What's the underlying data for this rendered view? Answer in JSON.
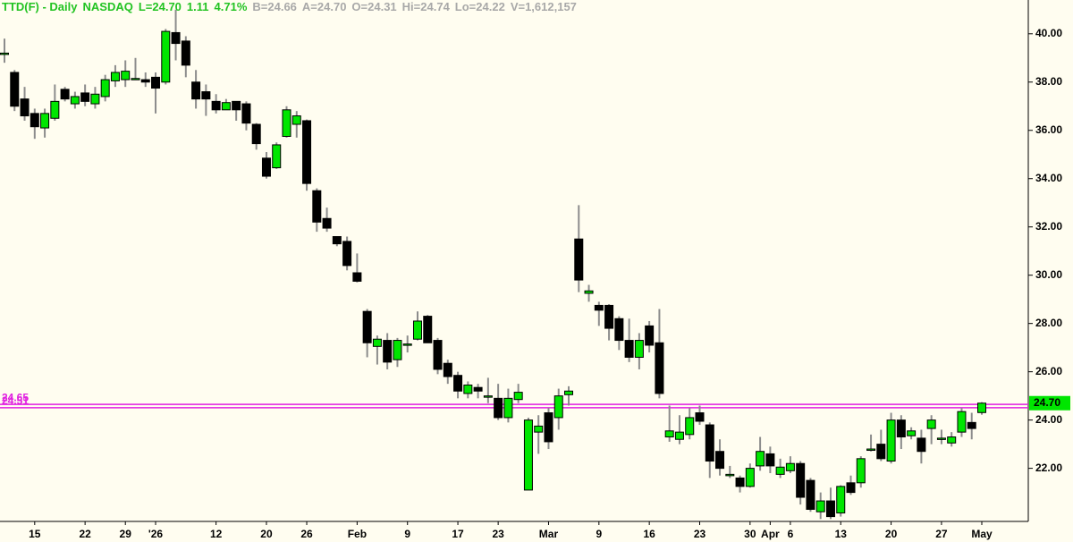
{
  "chart_data": {
    "type": "candlestick",
    "title": [
      "TTD(F) - Daily",
      "NASDAQ",
      "L=24.70",
      "1.11",
      "4.71%"
    ],
    "subtitle": [
      "B=24.66",
      "A=24.70",
      "O=24.31",
      "Hi=24.74",
      "Lo=24.22",
      "V=1,612,157"
    ],
    "categories": [
      null,
      null,
      null,
      "15",
      null,
      null,
      null,
      null,
      "22",
      null,
      null,
      null,
      "29",
      null,
      null,
      "'26",
      null,
      null,
      null,
      null,
      null,
      "12",
      null,
      null,
      null,
      null,
      "20",
      null,
      null,
      null,
      "26",
      null,
      null,
      null,
      null,
      "Feb",
      null,
      null,
      null,
      null,
      "9",
      null,
      null,
      null,
      null,
      "17",
      null,
      null,
      null,
      "23",
      null,
      null,
      null,
      null,
      "Mar",
      null,
      null,
      null,
      null,
      "9",
      null,
      null,
      null,
      null,
      "16",
      null,
      null,
      null,
      null,
      "23",
      null,
      null,
      null,
      null,
      "30",
      null,
      "Apr",
      null,
      "6",
      null,
      null,
      null,
      null,
      "13",
      null,
      null,
      null,
      null,
      "20",
      null,
      null,
      null,
      null,
      "27",
      null,
      null,
      null,
      "May"
    ],
    "open": [
      39.2,
      38.4,
      37.3,
      36.7,
      36.1,
      36.5,
      37.7,
      37.1,
      37.55,
      37.1,
      37.4,
      38.05,
      38.1,
      38.15,
      38.1,
      38.2,
      38.0,
      40.05,
      39.7,
      38.0,
      37.6,
      37.2,
      36.85,
      37.2,
      37.1,
      36.25,
      34.85,
      34.45,
      35.75,
      36.25,
      36.4,
      33.5,
      32.35,
      31.6,
      31.4,
      30.1,
      28.5,
      27.05,
      27.3,
      26.5,
      27.15,
      27.35,
      28.3,
      27.3,
      26.35,
      25.85,
      25.1,
      25.35,
      25.0,
      24.9,
      24.1,
      24.85,
      21.1,
      23.5,
      24.3,
      24.1,
      25.05,
      31.5,
      29.25,
      28.75,
      28.75,
      28.2,
      27.3,
      26.6,
      27.9,
      27.2,
      23.3,
      23.2,
      23.4,
      24.3,
      23.8,
      22.7,
      21.75,
      21.6,
      21.25,
      22.1,
      22.6,
      21.75,
      21.9,
      22.2,
      21.5,
      20.2,
      20.65,
      20.15,
      21.4,
      21.4,
      22.8,
      23.0,
      22.3,
      24.0,
      23.35,
      23.25,
      23.65,
      23.25,
      23.05,
      23.5,
      23.9,
      24.31
    ],
    "high": [
      39.8,
      38.5,
      37.8,
      36.9,
      36.9,
      37.9,
      37.8,
      37.6,
      37.9,
      37.8,
      38.3,
      38.7,
      38.9,
      39.0,
      38.4,
      38.4,
      40.2,
      41.0,
      39.9,
      38.5,
      37.9,
      37.5,
      37.3,
      37.2,
      37.2,
      36.3,
      35.1,
      35.5,
      37.0,
      36.8,
      36.45,
      33.6,
      32.8,
      31.6,
      31.6,
      30.9,
      28.6,
      27.5,
      27.6,
      27.4,
      27.5,
      28.5,
      28.35,
      27.4,
      26.5,
      26.0,
      25.6,
      25.5,
      25.75,
      25.5,
      25.3,
      25.5,
      24.1,
      24.2,
      24.5,
      25.3,
      25.4,
      32.9,
      29.6,
      28.9,
      28.8,
      28.3,
      28.2,
      27.6,
      28.1,
      28.6,
      24.6,
      24.2,
      24.5,
      24.6,
      23.9,
      23.2,
      22.1,
      21.7,
      22.2,
      23.3,
      22.9,
      22.4,
      22.5,
      22.3,
      21.6,
      21.0,
      21.2,
      21.3,
      21.7,
      22.5,
      23.4,
      23.6,
      24.3,
      24.2,
      23.7,
      23.6,
      24.2,
      23.6,
      23.5,
      24.5,
      24.3,
      24.74
    ],
    "low": [
      38.8,
      36.8,
      36.4,
      35.65,
      35.7,
      36.4,
      37.2,
      36.9,
      37.0,
      36.9,
      37.2,
      37.8,
      37.8,
      38.1,
      37.8,
      36.7,
      37.9,
      38.9,
      38.2,
      36.9,
      36.6,
      36.7,
      36.9,
      36.4,
      36.0,
      35.2,
      34.0,
      34.4,
      35.7,
      35.7,
      33.5,
      31.8,
      31.8,
      31.2,
      30.2,
      29.7,
      26.6,
      26.3,
      26.1,
      26.2,
      26.8,
      27.3,
      27.2,
      25.9,
      25.5,
      24.9,
      24.9,
      24.9,
      24.7,
      24.0,
      23.9,
      24.7,
      21.1,
      22.6,
      22.8,
      23.6,
      24.6,
      29.3,
      28.9,
      27.9,
      27.3,
      26.9,
      26.4,
      26.1,
      26.8,
      24.9,
      23.1,
      23.0,
      23.2,
      23.8,
      21.6,
      21.7,
      21.6,
      21.0,
      21.2,
      21.9,
      21.8,
      21.6,
      21.8,
      20.5,
      20.2,
      19.9,
      19.9,
      20.0,
      20.9,
      21.2,
      22.7,
      22.3,
      22.2,
      22.8,
      23.2,
      22.2,
      23.0,
      23.0,
      22.9,
      23.3,
      23.2,
      24.22
    ],
    "close": [
      39.2,
      37.0,
      36.6,
      36.15,
      36.7,
      37.2,
      37.3,
      37.4,
      37.2,
      37.5,
      38.1,
      38.4,
      38.45,
      38.15,
      38.0,
      37.75,
      40.1,
      39.6,
      38.7,
      37.3,
      37.3,
      36.85,
      37.15,
      36.85,
      36.3,
      35.45,
      34.1,
      35.4,
      36.85,
      36.6,
      33.8,
      32.2,
      31.95,
      31.3,
      30.4,
      29.75,
      27.2,
      27.35,
      26.4,
      27.3,
      27.15,
      28.1,
      27.2,
      26.1,
      25.8,
      25.2,
      25.45,
      25.2,
      25.0,
      24.1,
      24.9,
      25.15,
      24.0,
      23.75,
      23.1,
      25.0,
      25.2,
      29.8,
      29.35,
      28.55,
      27.8,
      27.3,
      26.6,
      27.3,
      27.1,
      25.1,
      23.55,
      23.5,
      24.1,
      23.95,
      22.3,
      22.0,
      21.75,
      21.25,
      22.0,
      22.7,
      22.1,
      22.05,
      22.2,
      20.8,
      20.3,
      20.65,
      20.0,
      21.25,
      21.0,
      22.4,
      22.8,
      22.4,
      24.0,
      23.3,
      23.55,
      22.7,
      24.0,
      23.25,
      23.3,
      24.35,
      23.65,
      24.7
    ],
    "up_color": "#00e600",
    "down_color": "#000000",
    "wick_color": "#8c8c8c",
    "levels": [
      {
        "value": 24.65,
        "label": "24.65"
      },
      {
        "value": 24.51,
        "label": "24.51"
      }
    ],
    "level_color": "#e020e0",
    "last_price": {
      "value": 24.7,
      "label": "24.70"
    },
    "ylim": [
      19.8,
      41.4
    ],
    "yticks": [
      {
        "value": 22,
        "label": "22.00"
      },
      {
        "value": 24,
        "label": "24.00"
      },
      {
        "value": 26,
        "label": "26.00"
      },
      {
        "value": 28,
        "label": "28.00"
      },
      {
        "value": 30,
        "label": "30.00"
      },
      {
        "value": 32,
        "label": "32.00"
      },
      {
        "value": 34,
        "label": "34.00"
      },
      {
        "value": 36,
        "label": "36.00"
      },
      {
        "value": 38,
        "label": "38.00"
      },
      {
        "value": 40,
        "label": "40.00"
      }
    ]
  }
}
